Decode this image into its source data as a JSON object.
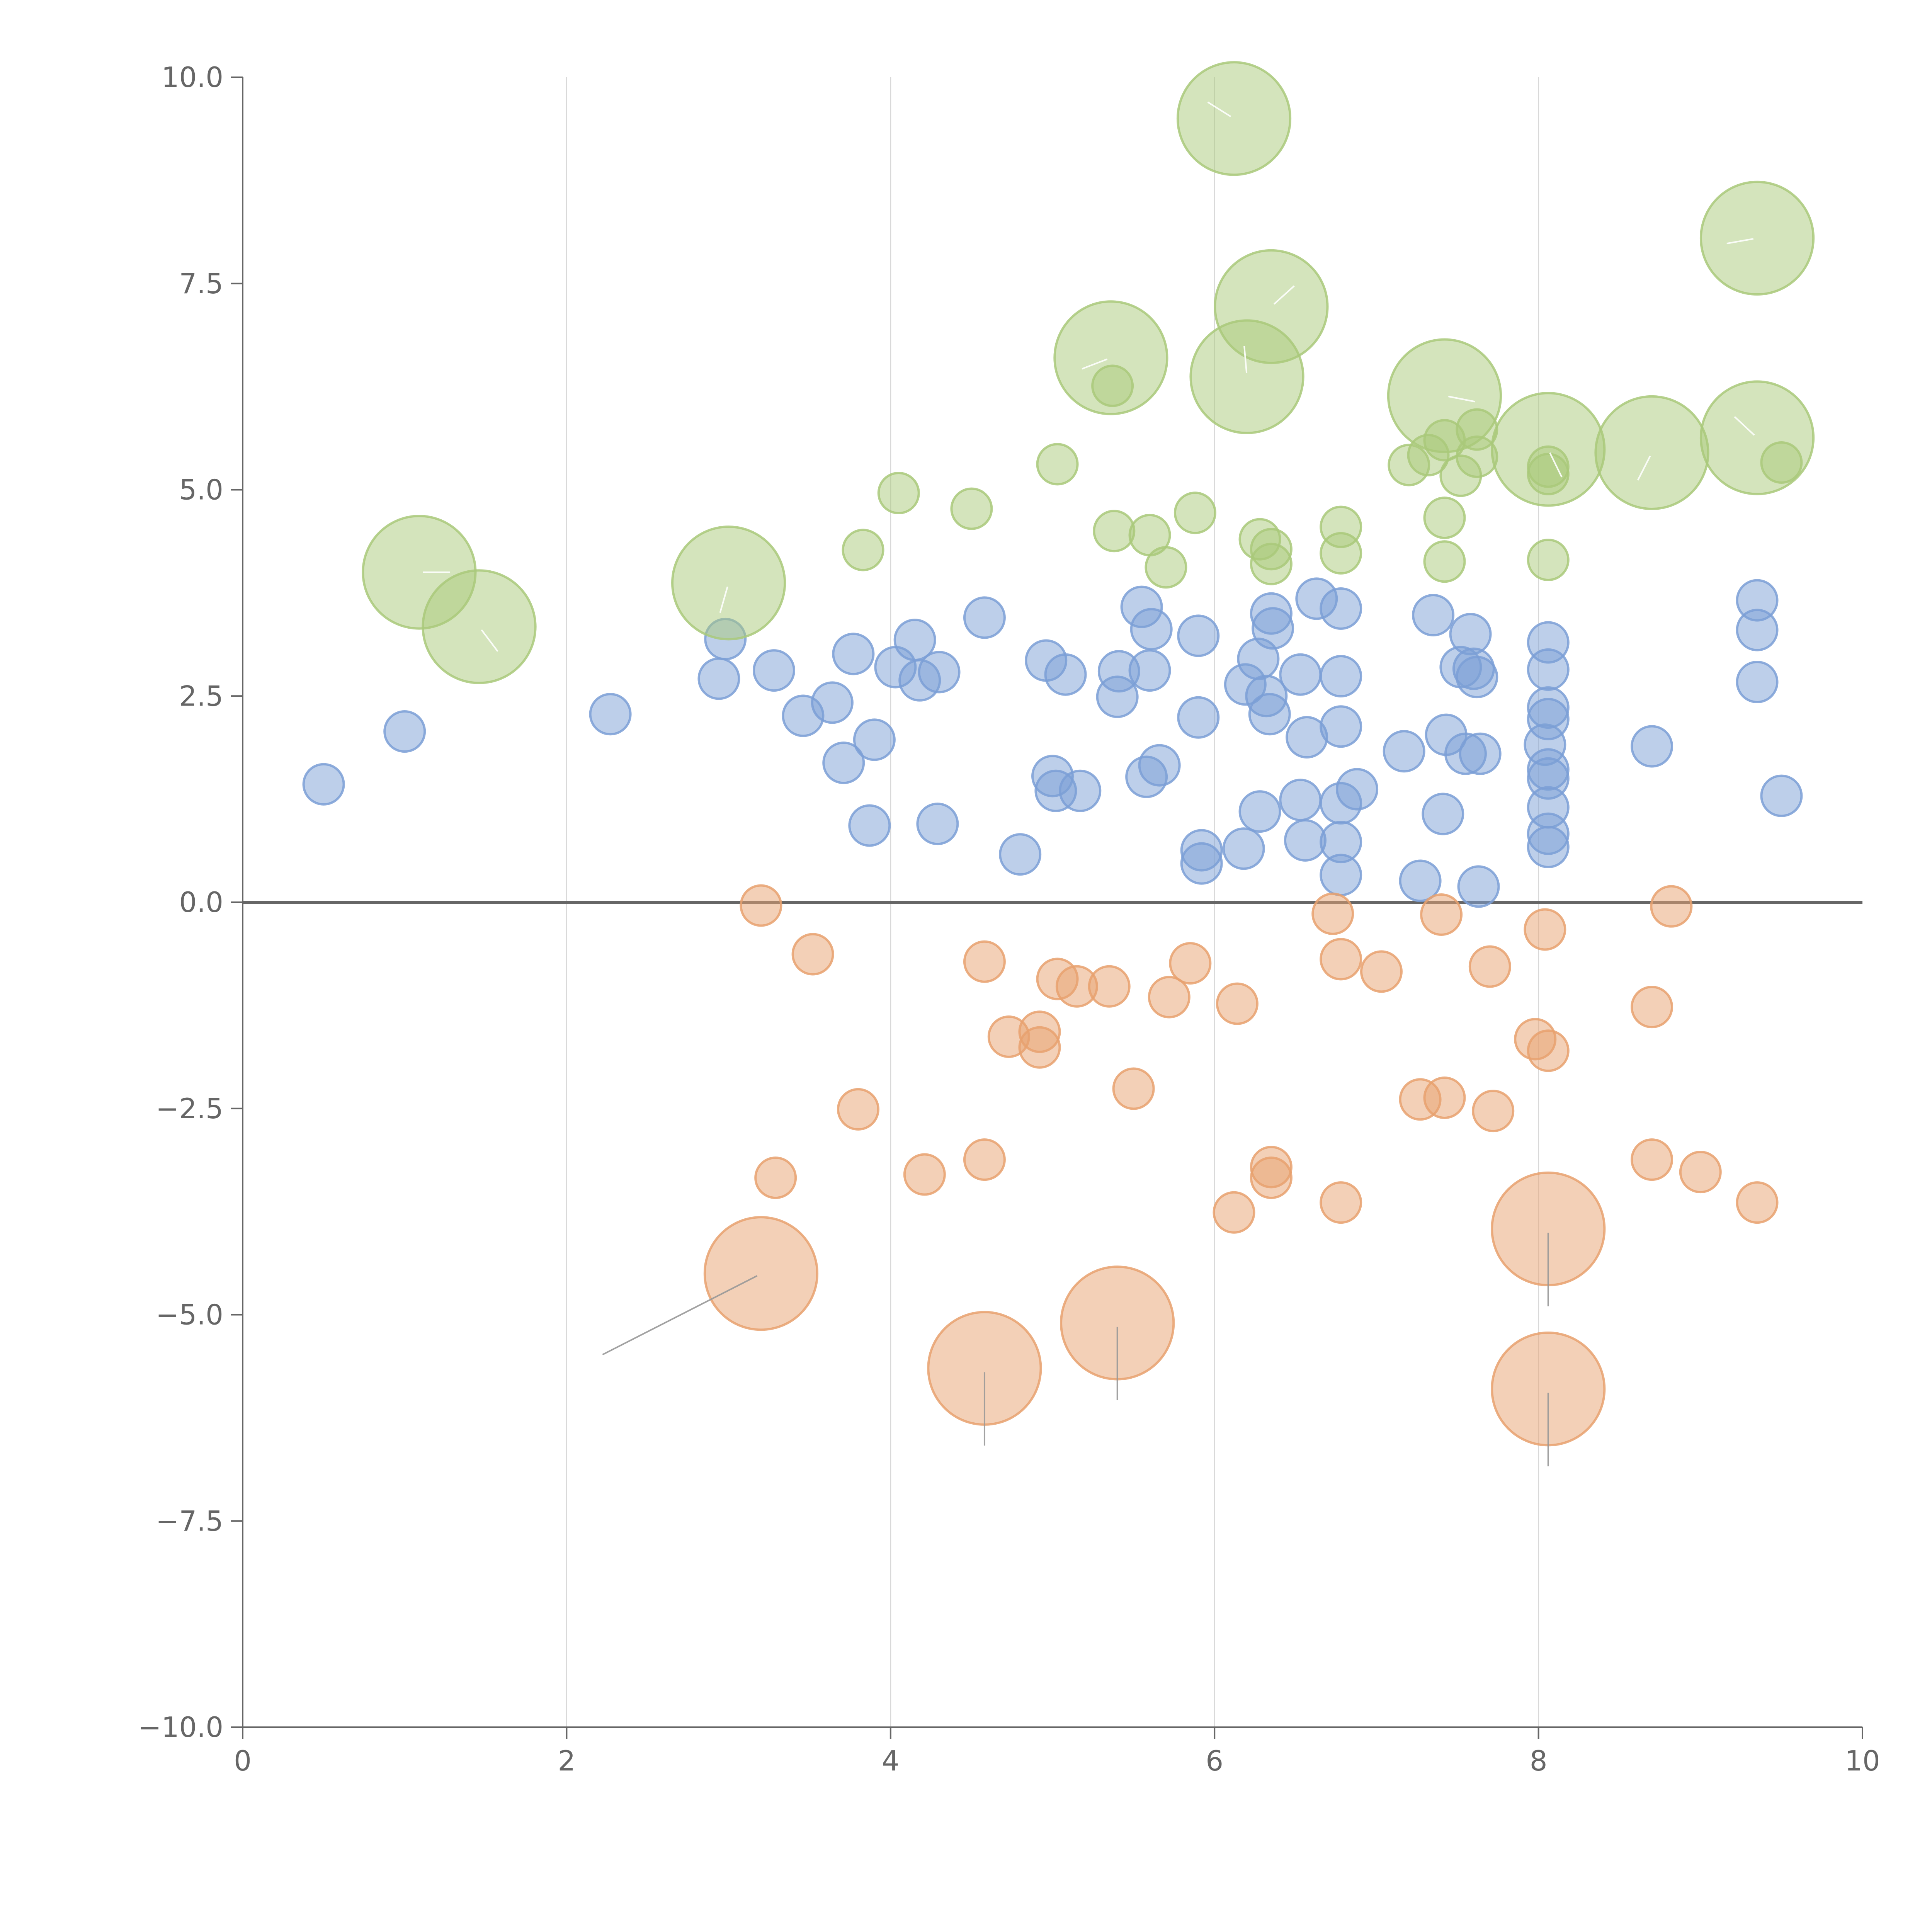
{
  "chart_data": {
    "type": "scatter",
    "title": "",
    "xlabel": "",
    "ylabel": "",
    "xlim": [
      0,
      10
    ],
    "ylim": [
      -10,
      10
    ],
    "grid": true,
    "x_ticks": [
      0,
      2,
      4,
      6,
      8,
      10
    ],
    "y_ticks": [
      10.0,
      7.5,
      5.0,
      2.5,
      0.0,
      -2.5,
      -5.0,
      -7.5,
      -10.0
    ],
    "x_tick_labels": [
      "0",
      "2",
      "4",
      "6",
      "8",
      "10"
    ],
    "y_tick_labels": [
      "10.0",
      "7.5",
      "5.0",
      "2.5",
      "0.0",
      "−2.5",
      "−5.0",
      "−7.5",
      "−10.0"
    ],
    "colors": {
      "blue": "#7b9fd6",
      "green": "#a9c97a",
      "orange": "#e8a16f"
    },
    "series": [
      {
        "name": "blue",
        "color": "#7b9fd6",
        "points": [
          [
            0.5,
            1.43,
            1
          ],
          [
            1.0,
            2.07,
            1
          ],
          [
            2.27,
            2.28,
            1
          ],
          [
            2.94,
            2.71,
            1
          ],
          [
            2.98,
            3.19,
            1
          ],
          [
            3.28,
            2.81,
            1
          ],
          [
            3.46,
            2.26,
            1
          ],
          [
            3.64,
            2.42,
            1
          ],
          [
            3.71,
            1.69,
            1
          ],
          [
            3.77,
            3.01,
            1
          ],
          [
            3.87,
            0.93,
            1
          ],
          [
            3.9,
            1.97,
            1
          ],
          [
            4.03,
            2.85,
            1
          ],
          [
            4.15,
            3.18,
            1
          ],
          [
            4.18,
            2.69,
            1
          ],
          [
            4.29,
            0.95,
            1
          ],
          [
            4.3,
            2.79,
            1
          ],
          [
            4.58,
            3.45,
            1
          ],
          [
            4.8,
            0.58,
            1
          ],
          [
            4.96,
            2.93,
            1
          ],
          [
            5.0,
            1.53,
            1
          ],
          [
            5.02,
            1.35,
            1
          ],
          [
            5.08,
            2.76,
            1
          ],
          [
            5.17,
            1.35,
            1
          ],
          [
            5.4,
            2.49,
            1
          ],
          [
            5.41,
            2.8,
            1
          ],
          [
            5.55,
            3.58,
            1
          ],
          [
            5.58,
            1.52,
            1
          ],
          [
            5.6,
            2.81,
            1
          ],
          [
            5.61,
            3.31,
            1
          ],
          [
            5.66,
            1.66,
            1
          ],
          [
            5.9,
            2.24,
            1
          ],
          [
            5.9,
            3.23,
            1
          ],
          [
            5.92,
            0.63,
            1
          ],
          [
            5.92,
            0.47,
            1
          ],
          [
            6.18,
            0.65,
            1
          ],
          [
            6.19,
            2.64,
            1
          ],
          [
            6.27,
            2.95,
            1
          ],
          [
            6.28,
            1.1,
            1
          ],
          [
            6.32,
            2.5,
            1
          ],
          [
            6.34,
            2.28,
            1
          ],
          [
            6.35,
            3.5,
            1
          ],
          [
            6.36,
            3.32,
            1
          ],
          [
            6.53,
            1.24,
            1
          ],
          [
            6.53,
            2.76,
            1
          ],
          [
            6.56,
            0.75,
            1
          ],
          [
            6.57,
            2.0,
            1
          ],
          [
            6.63,
            3.68,
            1
          ],
          [
            6.78,
            3.56,
            1
          ],
          [
            6.78,
            2.74,
            1
          ],
          [
            6.78,
            2.13,
            1
          ],
          [
            6.78,
            1.2,
            1
          ],
          [
            6.78,
            0.73,
            1
          ],
          [
            6.78,
            0.33,
            1
          ],
          [
            6.88,
            1.37,
            1
          ],
          [
            7.17,
            1.83,
            1
          ],
          [
            7.27,
            0.26,
            1
          ],
          [
            7.35,
            3.48,
            1
          ],
          [
            7.41,
            1.07,
            1
          ],
          [
            7.43,
            2.03,
            1
          ],
          [
            7.52,
            2.85,
            1
          ],
          [
            7.55,
            1.8,
            1
          ],
          [
            7.58,
            3.25,
            1
          ],
          [
            7.6,
            2.83,
            1
          ],
          [
            7.62,
            2.73,
            1
          ],
          [
            7.63,
            0.19,
            1
          ],
          [
            7.64,
            1.8,
            1
          ],
          [
            8.04,
            1.91,
            1
          ],
          [
            8.06,
            3.15,
            1
          ],
          [
            8.06,
            2.82,
            1
          ],
          [
            8.06,
            2.36,
            1
          ],
          [
            8.06,
            2.22,
            1
          ],
          [
            8.06,
            1.61,
            1
          ],
          [
            8.06,
            1.5,
            1
          ],
          [
            8.06,
            1.15,
            1
          ],
          [
            8.06,
            0.83,
            1
          ],
          [
            8.06,
            0.67,
            1
          ],
          [
            8.7,
            1.89,
            1
          ],
          [
            9.35,
            3.66,
            1
          ],
          [
            9.35,
            3.3,
            1
          ],
          [
            9.35,
            2.67,
            1
          ],
          [
            9.5,
            1.29,
            1
          ]
        ]
      },
      {
        "name": "green",
        "color": "#a9c97a",
        "points": [
          [
            1.09,
            4.0,
            2.8
          ],
          [
            1.46,
            3.34,
            2.8
          ],
          [
            3.0,
            3.87,
            2.8
          ],
          [
            3.83,
            4.27,
            1
          ],
          [
            4.05,
            4.96,
            1
          ],
          [
            4.5,
            4.77,
            1
          ],
          [
            5.03,
            5.31,
            1
          ],
          [
            5.36,
            6.6,
            2.8
          ],
          [
            5.37,
            6.26,
            1
          ],
          [
            5.38,
            4.5,
            1
          ],
          [
            5.6,
            4.45,
            1
          ],
          [
            5.7,
            4.06,
            1
          ],
          [
            5.88,
            4.72,
            1
          ],
          [
            6.12,
            9.5,
            2.8
          ],
          [
            6.2,
            6.37,
            2.8
          ],
          [
            6.28,
            4.4,
            1
          ],
          [
            6.35,
            4.28,
            1
          ],
          [
            6.35,
            4.1,
            1
          ],
          [
            6.35,
            7.22,
            2.8
          ],
          [
            6.78,
            4.55,
            1
          ],
          [
            6.78,
            4.23,
            1
          ],
          [
            7.2,
            5.3,
            1
          ],
          [
            7.32,
            5.42,
            1
          ],
          [
            7.42,
            6.14,
            2.8
          ],
          [
            7.42,
            5.6,
            1
          ],
          [
            7.42,
            4.66,
            1
          ],
          [
            7.42,
            4.13,
            1
          ],
          [
            7.52,
            5.17,
            1
          ],
          [
            7.62,
            5.73,
            1
          ],
          [
            7.62,
            5.4,
            1
          ],
          [
            8.06,
            5.49,
            2.8
          ],
          [
            8.06,
            5.28,
            1
          ],
          [
            8.06,
            5.19,
            1
          ],
          [
            8.06,
            4.15,
            1
          ],
          [
            8.7,
            5.45,
            2.8
          ],
          [
            9.35,
            8.05,
            2.8
          ],
          [
            9.35,
            5.63,
            2.8
          ],
          [
            9.5,
            5.33,
            1
          ]
        ]
      },
      {
        "name": "orange",
        "color": "#e8a16f",
        "points": [
          [
            3.2,
            -0.04,
            1
          ],
          [
            3.2,
            -4.5,
            2.8
          ],
          [
            3.29,
            -3.34,
            1
          ],
          [
            3.52,
            -0.63,
            1
          ],
          [
            3.8,
            -2.51,
            1
          ],
          [
            4.21,
            -3.3,
            1
          ],
          [
            4.58,
            -0.72,
            1
          ],
          [
            4.58,
            -3.12,
            1
          ],
          [
            4.58,
            -5.65,
            2.8
          ],
          [
            4.73,
            -1.63,
            1
          ],
          [
            4.92,
            -1.57,
            1
          ],
          [
            4.92,
            -1.76,
            1
          ],
          [
            5.03,
            -0.93,
            1
          ],
          [
            5.15,
            -1.02,
            1
          ],
          [
            5.35,
            -1.02,
            1
          ],
          [
            5.4,
            -5.1,
            2.8
          ],
          [
            5.5,
            -2.26,
            1
          ],
          [
            5.72,
            -1.15,
            1
          ],
          [
            5.85,
            -0.74,
            1
          ],
          [
            6.12,
            -3.76,
            1
          ],
          [
            6.14,
            -1.23,
            1
          ],
          [
            6.35,
            -3.21,
            1
          ],
          [
            6.35,
            -3.34,
            1
          ],
          [
            6.73,
            -0.14,
            1
          ],
          [
            6.78,
            -0.69,
            1
          ],
          [
            6.78,
            -3.64,
            1
          ],
          [
            7.03,
            -0.84,
            1
          ],
          [
            7.27,
            -2.39,
            1
          ],
          [
            7.4,
            -0.15,
            1
          ],
          [
            7.42,
            -2.37,
            1
          ],
          [
            7.7,
            -0.78,
            1
          ],
          [
            7.72,
            -2.53,
            1
          ],
          [
            7.98,
            -1.66,
            1
          ],
          [
            8.04,
            -0.33,
            1
          ],
          [
            8.06,
            -1.8,
            1
          ],
          [
            8.06,
            -3.96,
            2.8
          ],
          [
            8.06,
            -5.9,
            2.8
          ],
          [
            8.7,
            -1.27,
            1
          ],
          [
            8.7,
            -3.12,
            1
          ],
          [
            8.82,
            -0.05,
            1
          ],
          [
            9.0,
            -3.27,
            1
          ],
          [
            9.35,
            -3.64,
            1
          ]
        ]
      }
    ]
  }
}
